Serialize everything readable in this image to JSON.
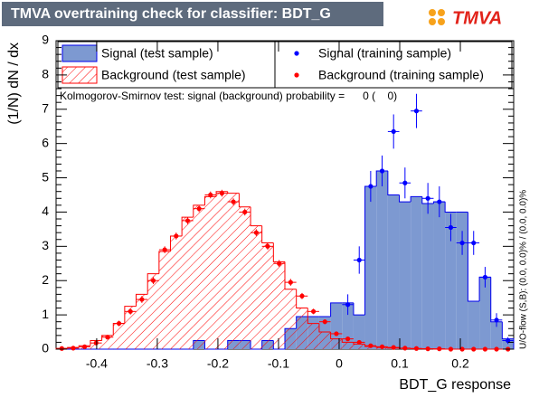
{
  "chart_data": {
    "type": "histogram",
    "title": "TMVA overtraining check for classifier: BDT_G",
    "logo": "TMVA",
    "xlabel": "BDT_G response",
    "ylabel": "(1/N) dN / dx",
    "annotation": "Kolmogorov-Smirnov test: signal (background) probability =      0 (    0)",
    "side_note": "U/O-flow (S,B): (0.0, 0.0)% / (0.0, 0.0)%",
    "xlim": [
      -0.467,
      0.288
    ],
    "ylim": [
      0,
      9
    ],
    "xticks": [
      -0.4,
      -0.3,
      -0.2,
      -0.1,
      0,
      0.1,
      0.2
    ],
    "yticks": [
      0,
      1,
      2,
      3,
      4,
      5,
      6,
      7,
      8,
      9
    ],
    "bins": [
      -0.467,
      -0.4481,
      -0.4293,
      -0.4104,
      -0.3915,
      -0.3726,
      -0.3538,
      -0.3349,
      -0.316,
      -0.2971,
      -0.2783,
      -0.2594,
      -0.2405,
      -0.2216,
      -0.2028,
      -0.1839,
      -0.165,
      -0.1461,
      -0.1273,
      -0.1084,
      -0.0895,
      -0.0706,
      -0.0518,
      -0.0329,
      -0.014,
      0.0049,
      0.0238,
      0.0426,
      0.0615,
      0.0804,
      0.0993,
      0.1181,
      0.137,
      0.1559,
      0.1748,
      0.1936,
      0.2125,
      0.2314,
      0.2503,
      0.2691,
      0.288
    ],
    "series": [
      {
        "name": "Signal (test sample)",
        "style": "filled",
        "color": "#0000ee",
        "fill": "#7d99d1",
        "values": [
          0,
          0,
          0,
          0,
          0,
          0,
          0,
          0,
          0,
          0,
          0,
          0,
          0.25,
          0,
          0,
          0.25,
          0.25,
          0,
          0.25,
          0,
          0.6,
          0.95,
          0.95,
          0.95,
          1.35,
          1.35,
          1.0,
          4.75,
          5.2,
          4.5,
          4.3,
          4.45,
          4.25,
          4.3,
          4.0,
          4.0,
          1.4,
          2.1,
          0.8,
          0.3
        ]
      },
      {
        "name": "Background (test sample)",
        "style": "hatched",
        "color": "#ff0000",
        "values": [
          0.02,
          0.05,
          0.1,
          0.25,
          0.4,
          0.75,
          1.25,
          1.6,
          2.2,
          2.85,
          3.3,
          3.85,
          4.2,
          4.45,
          4.6,
          4.55,
          4.15,
          3.6,
          3.1,
          2.55,
          1.75,
          1.2,
          0.75,
          0.5,
          0.3,
          0.2,
          0.15,
          0.08,
          0.05,
          0.03,
          0.02,
          0.01,
          0.01,
          0,
          0,
          0,
          0,
          0,
          0,
          0
        ]
      },
      {
        "name": "Signal (training sample)",
        "style": "points",
        "color": "#0000ff",
        "values": [
          null,
          null,
          null,
          null,
          null,
          null,
          null,
          null,
          null,
          null,
          null,
          null,
          null,
          null,
          null,
          null,
          null,
          null,
          null,
          null,
          null,
          null,
          null,
          null,
          null,
          1.3,
          2.6,
          4.75,
          5.2,
          6.35,
          4.85,
          6.95,
          4.4,
          4.3,
          3.55,
          3.1,
          3.1,
          2.1,
          0.85,
          0.25
        ],
        "errors": [
          null,
          null,
          null,
          null,
          null,
          null,
          null,
          null,
          null,
          null,
          null,
          null,
          null,
          null,
          null,
          null,
          null,
          null,
          null,
          null,
          null,
          null,
          null,
          null,
          null,
          0.3,
          0.4,
          0.45,
          0.45,
          0.5,
          0.45,
          0.5,
          0.45,
          0.45,
          0.4,
          0.35,
          0.35,
          0.3,
          0.2,
          0.1
        ]
      },
      {
        "name": "Background (training sample)",
        "style": "points",
        "color": "#ff0000",
        "values": [
          0.02,
          0.03,
          0.07,
          0.18,
          0.35,
          0.75,
          1.1,
          1.45,
          2.0,
          2.9,
          3.3,
          3.75,
          4.1,
          4.5,
          4.55,
          4.3,
          4.0,
          3.4,
          3.0,
          2.5,
          1.95,
          1.55,
          1.1,
          0.8,
          0.45,
          0.3,
          0.2,
          0.1,
          0.07,
          0.05,
          0.03,
          0.02,
          0.01,
          0.01,
          0,
          0,
          0,
          0,
          0,
          0
        ],
        "errors": [
          0.01,
          0.02,
          0.03,
          0.05,
          0.06,
          0.08,
          0.09,
          0.1,
          0.1,
          0.1,
          0.1,
          0.1,
          0.1,
          0.1,
          0.1,
          0.1,
          0.1,
          0.1,
          0.1,
          0.1,
          0.1,
          0.09,
          0.08,
          0.07,
          0.05,
          0.04,
          0.03,
          0.02,
          0.02,
          0.02,
          0.01,
          0.01,
          0.01,
          0.01,
          0,
          0,
          0,
          0,
          0,
          0
        ]
      }
    ]
  }
}
